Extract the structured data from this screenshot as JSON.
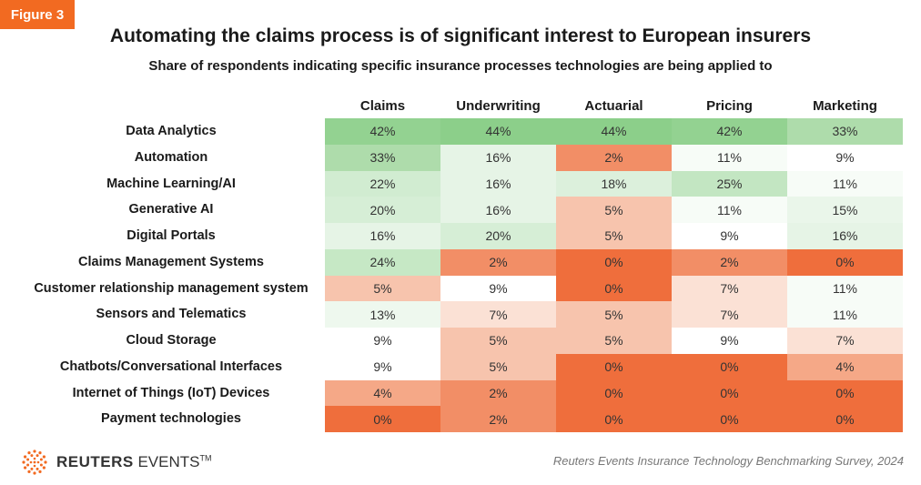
{
  "figure_label": "Figure 3",
  "brand": {
    "name_bold": "REUTERS",
    "name_light": "EVENTS",
    "tm": "TM"
  },
  "source": "Reuters Events Insurance Technology Benchmarking Survey, 2024",
  "colors": {
    "accent": "#f26a21",
    "scale": [
      "#ef6e3c",
      "#f28a62",
      "#f5a887",
      "#f7c3ab",
      "#fbe0d3",
      "#ffffff",
      "#eef8ee",
      "#dff1df",
      "#c9e9c8",
      "#b0dfae",
      "#8fd18d"
    ]
  },
  "chart_data": {
    "type": "heatmap",
    "title": "Automating the claims process is of significant interest to European insurers",
    "subtitle": "Share of respondents indicating specific insurance processes technologies are being applied to",
    "columns": [
      "Claims",
      "Underwriting",
      "Actuarial",
      "Pricing",
      "Marketing"
    ],
    "rows": [
      "Data Analytics",
      "Automation",
      "Machine Learning/AI",
      "Generative AI",
      "Digital Portals",
      "Claims Management Systems",
      "Customer relationship management system",
      "Sensors and Telematics",
      "Cloud Storage",
      "Chatbots/Conversational Interfaces",
      "Internet of Things (IoT) Devices",
      "Payment technologies"
    ],
    "values": [
      [
        42,
        44,
        44,
        42,
        33
      ],
      [
        33,
        16,
        2,
        11,
        9
      ],
      [
        22,
        16,
        18,
        25,
        11
      ],
      [
        20,
        16,
        5,
        11,
        15
      ],
      [
        16,
        20,
        5,
        9,
        16
      ],
      [
        24,
        2,
        0,
        2,
        0
      ],
      [
        5,
        9,
        0,
        7,
        11
      ],
      [
        13,
        7,
        5,
        7,
        11
      ],
      [
        9,
        5,
        5,
        9,
        7
      ],
      [
        9,
        5,
        0,
        0,
        4
      ],
      [
        4,
        2,
        0,
        0,
        0
      ],
      [
        0,
        2,
        0,
        0,
        0
      ]
    ],
    "unit": "%"
  }
}
